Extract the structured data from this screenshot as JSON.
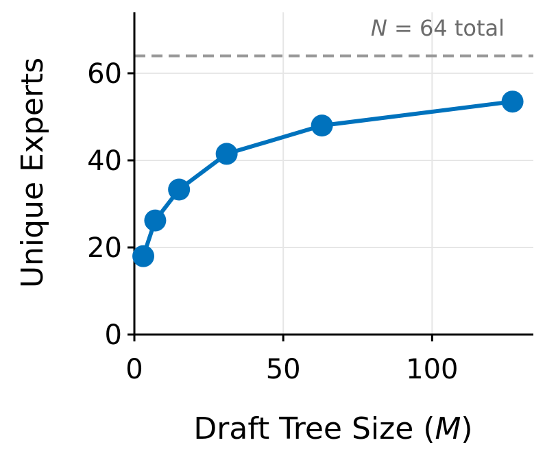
{
  "chart_data": {
    "type": "line",
    "x": [
      3,
      7,
      15,
      31,
      63,
      127
    ],
    "series": [
      {
        "values": [
          18,
          26.2,
          33.3,
          41.5,
          48.0,
          53.5
        ],
        "color": "#0072bd",
        "marker": "circle"
      }
    ],
    "xlabel_prefix": "Draft Tree Size (",
    "xlabel_var": "M",
    "xlabel_suffix": ")",
    "ylabel": "Unique Experts",
    "xlim": [
      0,
      134
    ],
    "ylim": [
      0,
      74
    ],
    "xticks": [
      0,
      50,
      100
    ],
    "yticks": [
      0,
      20,
      40,
      60
    ],
    "grid": true,
    "reference_line": {
      "y": 64,
      "color": "#999999",
      "style": "dashed",
      "label_var": "N",
      "label_rest": " = 64 total"
    }
  }
}
